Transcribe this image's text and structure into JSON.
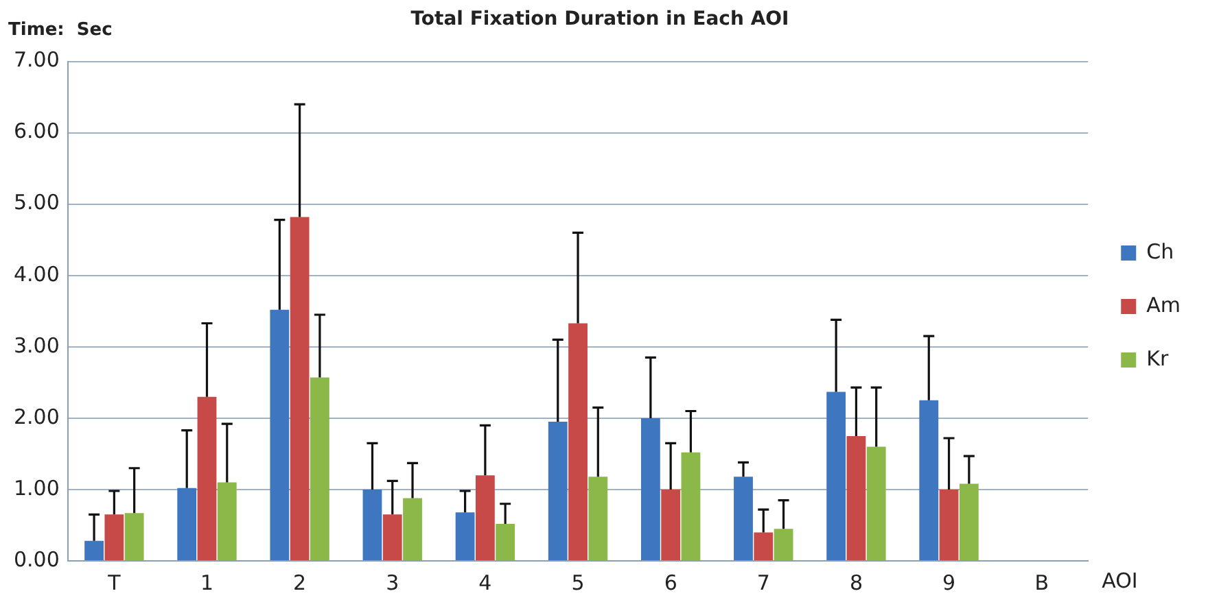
{
  "chart_data": {
    "type": "bar",
    "title": "Total Fixation Duration in Each AOI",
    "ylabel": "Time:  Sec",
    "xlabel": "AOI",
    "categories": [
      "T",
      "1",
      "2",
      "3",
      "4",
      "5",
      "6",
      "7",
      "8",
      "9",
      "B"
    ],
    "series": [
      {
        "name": "Ch",
        "color": "#3e76c0",
        "values": [
          0.28,
          1.02,
          3.52,
          1.0,
          0.68,
          1.95,
          2.0,
          1.18,
          2.37,
          2.25,
          null
        ],
        "errors": [
          [
            0.28,
            0.65
          ],
          [
            1.02,
            1.83
          ],
          [
            3.52,
            4.78
          ],
          [
            1.0,
            1.65
          ],
          [
            0.68,
            0.98
          ],
          [
            1.95,
            3.1
          ],
          [
            2.0,
            2.85
          ],
          [
            1.18,
            1.38
          ],
          [
            2.37,
            3.38
          ],
          [
            2.25,
            3.15
          ],
          null
        ]
      },
      {
        "name": "Am",
        "color": "#c84a48",
        "values": [
          0.65,
          2.3,
          4.82,
          0.65,
          1.2,
          3.33,
          1.0,
          0.4,
          1.75,
          1.0,
          null
        ],
        "errors": [
          [
            0.65,
            0.98
          ],
          [
            2.3,
            3.33
          ],
          [
            4.82,
            6.4
          ],
          [
            0.65,
            1.12
          ],
          [
            1.2,
            1.9
          ],
          [
            3.33,
            4.6
          ],
          [
            1.0,
            1.65
          ],
          [
            0.4,
            0.72
          ],
          [
            1.75,
            2.43
          ],
          [
            1.0,
            1.72
          ],
          null
        ]
      },
      {
        "name": "Kr",
        "color": "#8cb84a",
        "values": [
          0.67,
          1.1,
          2.57,
          0.88,
          0.52,
          1.18,
          1.52,
          0.45,
          1.6,
          1.08,
          null
        ],
        "errors": [
          [
            0.67,
            1.3
          ],
          [
            1.1,
            1.92
          ],
          [
            2.57,
            3.45
          ],
          [
            0.88,
            1.37
          ],
          [
            0.52,
            0.8
          ],
          [
            1.18,
            2.15
          ],
          [
            1.52,
            2.1
          ],
          [
            0.45,
            0.85
          ],
          [
            1.6,
            2.43
          ],
          [
            1.08,
            1.47
          ],
          null
        ]
      }
    ],
    "ylim": [
      0,
      7
    ],
    "yticks": [
      {
        "value": 0,
        "label": "0.00"
      },
      {
        "value": 1,
        "label": "1.00"
      },
      {
        "value": 2,
        "label": "2.00"
      },
      {
        "value": 3,
        "label": "3.00"
      },
      {
        "value": 4,
        "label": "4.00"
      },
      {
        "value": 5,
        "label": "5.00"
      },
      {
        "value": 6,
        "label": "6.00"
      },
      {
        "value": 7,
        "label": "7.00"
      }
    ],
    "grid": "y",
    "legend": "right"
  }
}
